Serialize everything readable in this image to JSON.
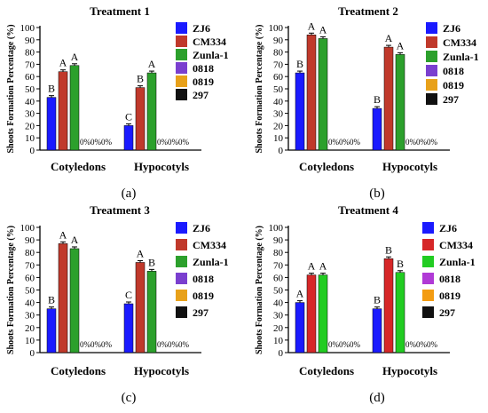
{
  "chart_data": [
    {
      "type": "bar",
      "title": "Treatment 1",
      "panel_label": "(a)",
      "ylabel": "Shoots Formation Percentage (%)",
      "ylim": [
        0,
        100
      ],
      "yticks": [
        0,
        10,
        20,
        30,
        40,
        50,
        60,
        70,
        80,
        90,
        100
      ],
      "categories": [
        "Cotyledons",
        "Hypocotyls"
      ],
      "series": [
        {
          "name": "ZJ6",
          "color": "#1a1aff",
          "values": [
            43,
            20
          ],
          "labels": [
            "B",
            "C"
          ]
        },
        {
          "name": "CM334",
          "color": "#c0392b",
          "values": [
            64,
            51
          ],
          "labels": [
            "A",
            "B"
          ]
        },
        {
          "name": "Zunla-1",
          "color": "#2ca02c",
          "values": [
            69,
            63
          ],
          "labels": [
            "A",
            "A"
          ]
        },
        {
          "name": "0818",
          "color": "#7a3fcf",
          "values": [
            0,
            0
          ],
          "labels": [
            "0%",
            "0%"
          ]
        },
        {
          "name": "0819",
          "color": "#e8a11a",
          "values": [
            0,
            0
          ],
          "labels": [
            "0%",
            "0%"
          ]
        },
        {
          "name": "297",
          "color": "#111111",
          "values": [
            0,
            0
          ],
          "labels": [
            "0%",
            "0%"
          ]
        }
      ]
    },
    {
      "type": "bar",
      "title": "Treatment 2",
      "panel_label": "(b)",
      "ylabel": "Shoots Formation Percentage (%)",
      "ylim": [
        0,
        100
      ],
      "yticks": [
        0,
        10,
        20,
        30,
        40,
        50,
        60,
        70,
        80,
        90,
        100
      ],
      "categories": [
        "Cotyledons",
        "Hypocotyls"
      ],
      "series": [
        {
          "name": "ZJ6",
          "color": "#1a1aff",
          "values": [
            63,
            34
          ],
          "labels": [
            "B",
            "B"
          ]
        },
        {
          "name": "CM334",
          "color": "#c0392b",
          "values": [
            94,
            84
          ],
          "labels": [
            "A",
            "A"
          ]
        },
        {
          "name": "Zunla-1",
          "color": "#2ca02c",
          "values": [
            91,
            78
          ],
          "labels": [
            "A",
            "A"
          ]
        },
        {
          "name": "0818",
          "color": "#7a3fcf",
          "values": [
            0,
            0
          ],
          "labels": [
            "0%",
            "0%"
          ]
        },
        {
          "name": "0819",
          "color": "#e8a11a",
          "values": [
            0,
            0
          ],
          "labels": [
            "0%",
            "0%"
          ]
        },
        {
          "name": "297",
          "color": "#111111",
          "values": [
            0,
            0
          ],
          "labels": [
            "0%",
            "0%"
          ]
        }
      ]
    },
    {
      "type": "bar",
      "title": "Treatment 3",
      "panel_label": "(c)",
      "ylabel": "Shoots Formation Percentage (%)",
      "ylim": [
        0,
        100
      ],
      "yticks": [
        0,
        10,
        20,
        30,
        40,
        50,
        60,
        70,
        80,
        90,
        100
      ],
      "categories": [
        "Cotyledons",
        "Hypocotyls"
      ],
      "series": [
        {
          "name": "ZJ6",
          "color": "#1a1aff",
          "values": [
            35,
            39
          ],
          "labels": [
            "B",
            "C"
          ]
        },
        {
          "name": "CM334",
          "color": "#c0392b",
          "values": [
            87,
            72
          ],
          "labels": [
            "A",
            "A"
          ]
        },
        {
          "name": "Zunla-1",
          "color": "#2ca02c",
          "values": [
            83,
            65
          ],
          "labels": [
            "A",
            "B"
          ]
        },
        {
          "name": "0818",
          "color": "#7a3fcf",
          "values": [
            0,
            0
          ],
          "labels": [
            "0%",
            "0%"
          ]
        },
        {
          "name": "0819",
          "color": "#e8a11a",
          "values": [
            0,
            0
          ],
          "labels": [
            "0%",
            "0%"
          ]
        },
        {
          "name": "297",
          "color": "#111111",
          "values": [
            0,
            0
          ],
          "labels": [
            "0%",
            "0%"
          ]
        }
      ]
    },
    {
      "type": "bar",
      "title": "Treatment 4",
      "panel_label": "(d)",
      "ylabel": "Shoots Formation Percentage (%)",
      "ylim": [
        0,
        100
      ],
      "yticks": [
        0,
        10,
        20,
        30,
        40,
        50,
        60,
        70,
        80,
        90,
        100
      ],
      "categories": [
        "Cotyledons",
        "Hypocotyls"
      ],
      "series": [
        {
          "name": "ZJ6",
          "color": "#1a1aff",
          "values": [
            40,
            35
          ],
          "labels": [
            "A",
            "B"
          ]
        },
        {
          "name": "CM334",
          "color": "#d62728",
          "values": [
            62,
            75
          ],
          "labels": [
            "A",
            "B"
          ]
        },
        {
          "name": "Zunla-1",
          "color": "#22cc22",
          "values": [
            62,
            64
          ],
          "labels": [
            "A",
            "B"
          ]
        },
        {
          "name": "0818",
          "color": "#b03ad6",
          "values": [
            0,
            0
          ],
          "labels": [
            "0%",
            "0%"
          ]
        },
        {
          "name": "0819",
          "color": "#f39c12",
          "values": [
            0,
            0
          ],
          "labels": [
            "0%",
            "0%"
          ]
        },
        {
          "name": "297",
          "color": "#111111",
          "values": [
            0,
            0
          ],
          "labels": [
            "0%",
            "0%"
          ]
        }
      ]
    }
  ]
}
